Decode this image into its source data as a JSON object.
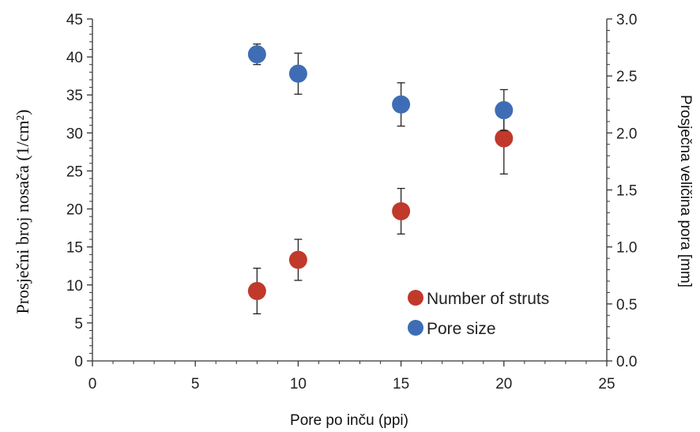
{
  "chart_data": {
    "type": "scatter",
    "xlabel": "Pore po inču (ppi)",
    "ylabel_left": "Prosječni broj nosača (1/cm²)",
    "ylabel_right": "Prosječna veličina pora [mm]",
    "xlim": [
      0,
      25
    ],
    "ylim_left": [
      0,
      45
    ],
    "ylim_right": [
      0,
      3.0
    ],
    "x_ticks": [
      "0",
      "5",
      "10",
      "15",
      "20",
      "25"
    ],
    "y_left_ticks": [
      "0",
      "5",
      "10",
      "15",
      "20",
      "25",
      "30",
      "35",
      "40",
      "45"
    ],
    "y_right_ticks": [
      "0.0",
      "0.5",
      "1.0",
      "1.5",
      "2.0",
      "2.5",
      "3.0"
    ],
    "grid": false,
    "legend_position": "bottom-right",
    "series": [
      {
        "name": "Number of struts",
        "color": "#c0392b",
        "axis": "left",
        "points": [
          {
            "x": 8,
            "y": 9.2,
            "err": 3.0
          },
          {
            "x": 10,
            "y": 13.3,
            "err": 2.7
          },
          {
            "x": 15,
            "y": 19.7,
            "err": 3.0
          },
          {
            "x": 20,
            "y": 29.3,
            "err": 4.7
          }
        ]
      },
      {
        "name": "Pore size",
        "color": "#3f6db5",
        "axis": "right",
        "points": [
          {
            "x": 8,
            "y": 2.69,
            "err": 0.09
          },
          {
            "x": 10,
            "y": 2.52,
            "err": 0.18
          },
          {
            "x": 15,
            "y": 2.25,
            "err": 0.19
          },
          {
            "x": 20,
            "y": 2.2,
            "err": 0.18
          }
        ]
      }
    ]
  }
}
